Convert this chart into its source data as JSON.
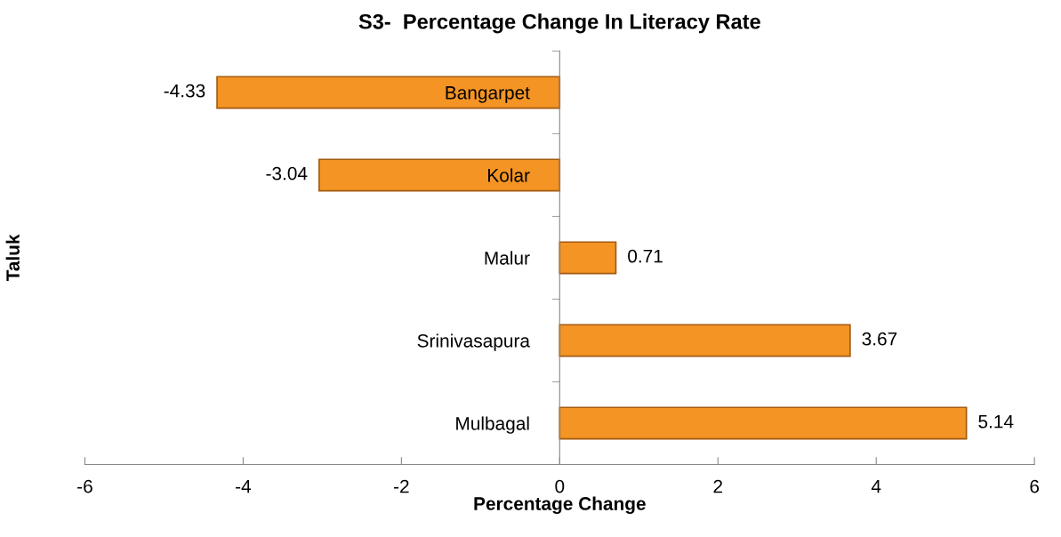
{
  "chart_data": {
    "type": "bar",
    "orientation": "horizontal",
    "title": "S3-  Percentage Change In Literacy Rate",
    "xlabel": "Percentage Change",
    "ylabel": "Taluk",
    "categories": [
      "Bangarpet",
      "Kolar",
      "Malur",
      "Srinivasapura",
      "Mulbagal"
    ],
    "values": [
      -4.33,
      -3.04,
      0.71,
      3.67,
      5.14
    ],
    "color": "#f39424",
    "xlim": [
      -6,
      6
    ],
    "xticks": [
      -6,
      -4,
      -2,
      0,
      2,
      4,
      6
    ],
    "data_labels": true,
    "grid": false,
    "legend": false
  }
}
